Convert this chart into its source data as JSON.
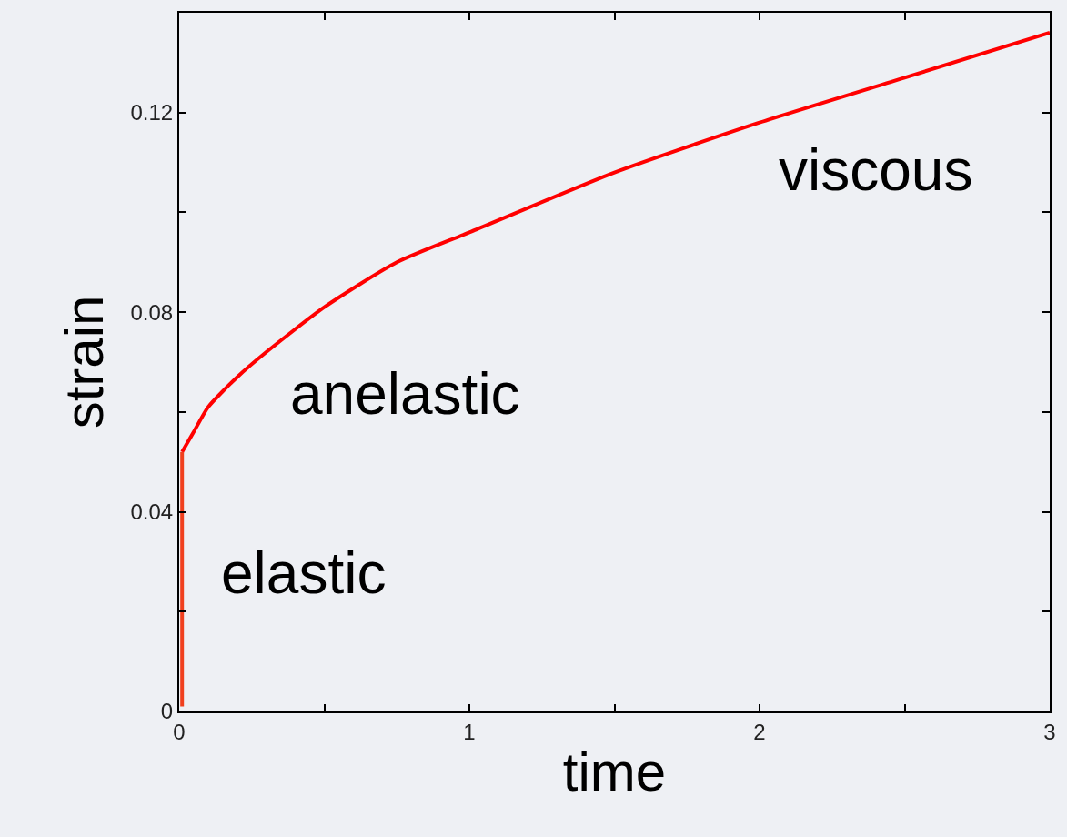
{
  "chart_data": {
    "type": "line",
    "xlabel": "time",
    "ylabel": "strain",
    "series": [
      {
        "color": "#ff0000",
        "x": [
          0.01,
          0.05,
          0.1,
          0.2,
          0.3,
          0.5,
          0.75,
          1,
          1.5,
          2,
          2.5,
          3
        ],
        "values": [
          0.052,
          0.056,
          0.061,
          0.067,
          0.072,
          0.081,
          0.09,
          0.096,
          0.108,
          0.118,
          0.127,
          0.136
        ]
      },
      {
        "color": "#f0401e",
        "x": [
          0.01,
          0.01
        ],
        "values": [
          0.001,
          0.052
        ]
      }
    ],
    "annotations": [
      "viscous",
      "anelastic",
      "elastic"
    ],
    "xlim": [
      0,
      3
    ],
    "xticks": [
      0,
      {
        "value": 0.5,
        "label": null
      },
      1,
      {
        "value": 1.5,
        "label": null
      },
      2,
      {
        "value": 2.5,
        "label": null
      },
      3
    ],
    "ylim": [
      0,
      0.14
    ],
    "yticks": [
      0,
      {
        "value": 0.02,
        "label": null
      },
      0.04,
      {
        "value": 0.06,
        "label": null
      },
      0.08,
      {
        "value": 0.1,
        "label": null
      },
      0.12
    ],
    "grid": false,
    "marker": "none",
    "line_style": "solid"
  }
}
